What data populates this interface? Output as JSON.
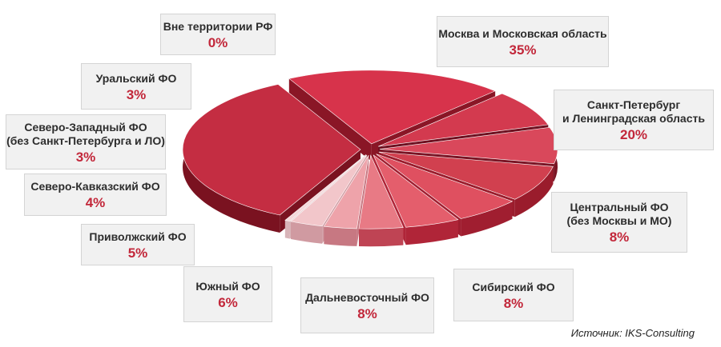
{
  "chart_data": {
    "type": "pie",
    "source": "Источник: IKS-Consulting",
    "slices": [
      {
        "label": "Москва и Московская область",
        "value": 35,
        "value_label": "35%",
        "color": "#c42d42",
        "side": "#7a1220"
      },
      {
        "label": "Санкт-Петербург\nи Ленинградская область",
        "value": 20,
        "value_label": "20%",
        "color": "#d7334b",
        "side": "#8a1626"
      },
      {
        "label": "Центральный ФО\n(без Москвы и МО)",
        "value": 8,
        "value_label": "8%",
        "color": "#d33a4f",
        "side": "#6e1020"
      },
      {
        "label": "Сибирский ФО",
        "value": 8,
        "value_label": "8%",
        "color": "#d9485b",
        "side": "#7a1424"
      },
      {
        "label": "Дальневосточный ФО",
        "value": 8,
        "value_label": "8%",
        "color": "#d1404f",
        "side": "#9a1c2c"
      },
      {
        "label": "Южный ФО",
        "value": 6,
        "value_label": "6%",
        "color": "#df5060",
        "side": "#a01e30"
      },
      {
        "label": "Приволжский ФО",
        "value": 5,
        "value_label": "5%",
        "color": "#e45e6c",
        "side": "#b02538"
      },
      {
        "label": "Северо-Кавказский ФО",
        "value": 4,
        "value_label": "4%",
        "color": "#e87a85",
        "side": "#bf4454"
      },
      {
        "label": "Северо-Западный ФО\n(без Санкт-Петербурга и ЛО)",
        "value": 3,
        "value_label": "3%",
        "color": "#eea3aa",
        "side": "#c77882"
      },
      {
        "label": "Уральский ФО",
        "value": 3,
        "value_label": "3%",
        "color": "#f2c6ca",
        "side": "#d09aa1"
      },
      {
        "label": "Вне территории РФ",
        "value": 0,
        "value_label": "0%",
        "color": "#f4d8da",
        "side": "#d8b4b8"
      }
    ]
  }
}
